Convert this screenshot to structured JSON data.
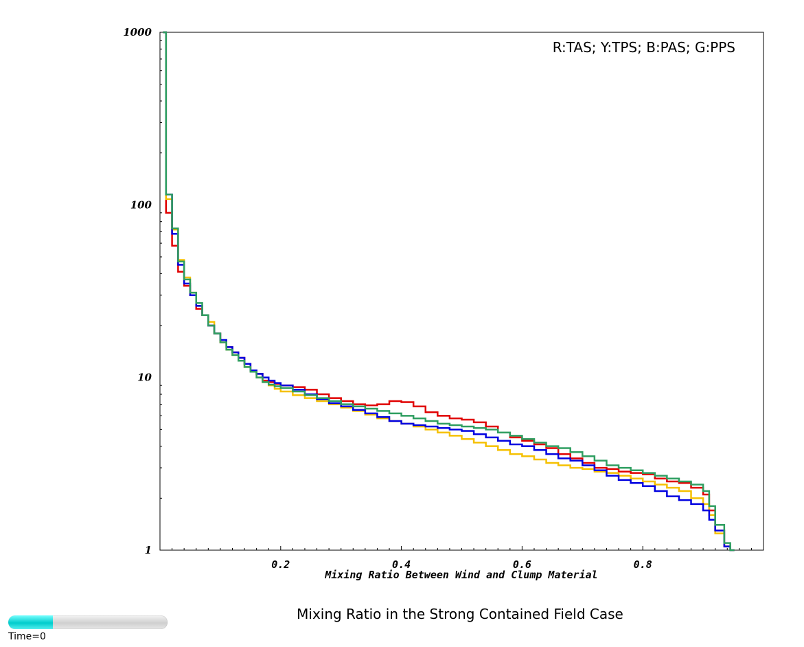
{
  "caption": "Mixing Ratio in the Strong Contained Field Case",
  "time_label": "Time=0",
  "slider": {
    "position_fraction": 0.28,
    "color": "#00cccc"
  },
  "chart_data": {
    "type": "line",
    "style": "step",
    "title": "",
    "legend_text": "R:TAS; Y:TPS; B:PAS; G:PPS",
    "legend_position": "top-right",
    "xlabel": "Mixing Ratio Between Wind and Clump Material",
    "ylabel": "",
    "xlim": [
      0.0,
      1.0
    ],
    "ylim": [
      1,
      1000
    ],
    "yscale": "log",
    "grid": false,
    "xticks": [
      "0.2",
      "0.4",
      "0.6",
      "0.8"
    ],
    "xtick_values": [
      0.2,
      0.4,
      0.6,
      0.8
    ],
    "yticks": [
      "1",
      "10",
      "100",
      "1000"
    ],
    "ytick_values": [
      1,
      10,
      100,
      1000
    ],
    "series": [
      {
        "name": "TAS",
        "color": "#e00000",
        "points": [
          [
            0.005,
            1000
          ],
          [
            0.01,
            90
          ],
          [
            0.02,
            58
          ],
          [
            0.03,
            41
          ],
          [
            0.04,
            34
          ],
          [
            0.05,
            30
          ],
          [
            0.06,
            25
          ],
          [
            0.07,
            23
          ],
          [
            0.08,
            20
          ],
          [
            0.09,
            18
          ],
          [
            0.1,
            16
          ],
          [
            0.11,
            15
          ],
          [
            0.12,
            14
          ],
          [
            0.13,
            13
          ],
          [
            0.14,
            12
          ],
          [
            0.15,
            11
          ],
          [
            0.16,
            10.5
          ],
          [
            0.17,
            9.6
          ],
          [
            0.18,
            9.4
          ],
          [
            0.19,
            9.2
          ],
          [
            0.2,
            9.0
          ],
          [
            0.22,
            8.8
          ],
          [
            0.24,
            8.5
          ],
          [
            0.26,
            8.0
          ],
          [
            0.28,
            7.6
          ],
          [
            0.3,
            7.3
          ],
          [
            0.32,
            7.0
          ],
          [
            0.34,
            6.9
          ],
          [
            0.36,
            7.0
          ],
          [
            0.38,
            7.3
          ],
          [
            0.4,
            7.2
          ],
          [
            0.42,
            6.8
          ],
          [
            0.44,
            6.3
          ],
          [
            0.46,
            6.0
          ],
          [
            0.48,
            5.8
          ],
          [
            0.5,
            5.7
          ],
          [
            0.52,
            5.5
          ],
          [
            0.54,
            5.2
          ],
          [
            0.56,
            4.8
          ],
          [
            0.58,
            4.5
          ],
          [
            0.6,
            4.3
          ],
          [
            0.62,
            4.1
          ],
          [
            0.64,
            3.9
          ],
          [
            0.66,
            3.6
          ],
          [
            0.68,
            3.4
          ],
          [
            0.7,
            3.2
          ],
          [
            0.72,
            3.0
          ],
          [
            0.74,
            2.95
          ],
          [
            0.76,
            2.85
          ],
          [
            0.78,
            2.8
          ],
          [
            0.8,
            2.75
          ],
          [
            0.82,
            2.6
          ],
          [
            0.84,
            2.5
          ],
          [
            0.86,
            2.45
          ],
          [
            0.88,
            2.3
          ],
          [
            0.9,
            2.1
          ],
          [
            0.91,
            1.7
          ],
          [
            0.92,
            1.3
          ],
          [
            0.935,
            1.05
          ],
          [
            0.945,
            1.0
          ]
        ]
      },
      {
        "name": "TPS",
        "color": "#f5c000",
        "points": [
          [
            0.005,
            1000
          ],
          [
            0.01,
            108
          ],
          [
            0.02,
            72
          ],
          [
            0.03,
            48
          ],
          [
            0.04,
            38
          ],
          [
            0.05,
            31
          ],
          [
            0.06,
            26
          ],
          [
            0.07,
            23
          ],
          [
            0.08,
            21
          ],
          [
            0.09,
            18
          ],
          [
            0.1,
            16
          ],
          [
            0.11,
            14.5
          ],
          [
            0.12,
            13.5
          ],
          [
            0.13,
            12.5
          ],
          [
            0.14,
            11.5
          ],
          [
            0.15,
            10.8
          ],
          [
            0.16,
            10.0
          ],
          [
            0.17,
            9.4
          ],
          [
            0.18,
            9.0
          ],
          [
            0.19,
            8.6
          ],
          [
            0.2,
            8.3
          ],
          [
            0.22,
            7.9
          ],
          [
            0.24,
            7.6
          ],
          [
            0.26,
            7.3
          ],
          [
            0.28,
            7.0
          ],
          [
            0.3,
            6.7
          ],
          [
            0.32,
            6.4
          ],
          [
            0.34,
            6.1
          ],
          [
            0.36,
            5.8
          ],
          [
            0.38,
            5.6
          ],
          [
            0.4,
            5.4
          ],
          [
            0.42,
            5.2
          ],
          [
            0.44,
            5.0
          ],
          [
            0.46,
            4.8
          ],
          [
            0.48,
            4.6
          ],
          [
            0.5,
            4.4
          ],
          [
            0.52,
            4.2
          ],
          [
            0.54,
            4.0
          ],
          [
            0.56,
            3.8
          ],
          [
            0.58,
            3.6
          ],
          [
            0.6,
            3.5
          ],
          [
            0.62,
            3.35
          ],
          [
            0.64,
            3.2
          ],
          [
            0.66,
            3.1
          ],
          [
            0.68,
            3.0
          ],
          [
            0.7,
            2.95
          ],
          [
            0.72,
            2.85
          ],
          [
            0.74,
            2.8
          ],
          [
            0.76,
            2.7
          ],
          [
            0.78,
            2.6
          ],
          [
            0.8,
            2.5
          ],
          [
            0.82,
            2.4
          ],
          [
            0.84,
            2.3
          ],
          [
            0.86,
            2.2
          ],
          [
            0.88,
            2.0
          ],
          [
            0.9,
            1.85
          ],
          [
            0.91,
            1.6
          ],
          [
            0.92,
            1.25
          ],
          [
            0.935,
            1.05
          ],
          [
            0.945,
            1.0
          ]
        ]
      },
      {
        "name": "PAS",
        "color": "#0000e0",
        "points": [
          [
            0.005,
            1000
          ],
          [
            0.01,
            115
          ],
          [
            0.02,
            68
          ],
          [
            0.03,
            45
          ],
          [
            0.04,
            35
          ],
          [
            0.05,
            30
          ],
          [
            0.06,
            26
          ],
          [
            0.07,
            23
          ],
          [
            0.08,
            20
          ],
          [
            0.09,
            18
          ],
          [
            0.1,
            16.5
          ],
          [
            0.11,
            15
          ],
          [
            0.12,
            14
          ],
          [
            0.13,
            13
          ],
          [
            0.14,
            12
          ],
          [
            0.15,
            11
          ],
          [
            0.16,
            10.5
          ],
          [
            0.17,
            10.0
          ],
          [
            0.18,
            9.6
          ],
          [
            0.19,
            9.3
          ],
          [
            0.2,
            9.0
          ],
          [
            0.22,
            8.5
          ],
          [
            0.24,
            8.0
          ],
          [
            0.26,
            7.5
          ],
          [
            0.28,
            7.1
          ],
          [
            0.3,
            6.8
          ],
          [
            0.32,
            6.5
          ],
          [
            0.34,
            6.2
          ],
          [
            0.36,
            5.9
          ],
          [
            0.38,
            5.6
          ],
          [
            0.4,
            5.4
          ],
          [
            0.42,
            5.3
          ],
          [
            0.44,
            5.2
          ],
          [
            0.46,
            5.1
          ],
          [
            0.48,
            5.0
          ],
          [
            0.5,
            4.9
          ],
          [
            0.52,
            4.7
          ],
          [
            0.54,
            4.5
          ],
          [
            0.56,
            4.3
          ],
          [
            0.58,
            4.1
          ],
          [
            0.6,
            4.0
          ],
          [
            0.62,
            3.8
          ],
          [
            0.64,
            3.6
          ],
          [
            0.66,
            3.4
          ],
          [
            0.68,
            3.3
          ],
          [
            0.7,
            3.1
          ],
          [
            0.72,
            2.9
          ],
          [
            0.74,
            2.7
          ],
          [
            0.76,
            2.55
          ],
          [
            0.78,
            2.45
          ],
          [
            0.8,
            2.35
          ],
          [
            0.82,
            2.2
          ],
          [
            0.84,
            2.05
          ],
          [
            0.86,
            1.95
          ],
          [
            0.88,
            1.85
          ],
          [
            0.9,
            1.7
          ],
          [
            0.91,
            1.5
          ],
          [
            0.92,
            1.3
          ],
          [
            0.935,
            1.05
          ],
          [
            0.945,
            1.0
          ]
        ]
      },
      {
        "name": "PPS",
        "color": "#2e9e60",
        "points": [
          [
            0.005,
            1000
          ],
          [
            0.01,
            115
          ],
          [
            0.02,
            73
          ],
          [
            0.03,
            47
          ],
          [
            0.04,
            37
          ],
          [
            0.05,
            31
          ],
          [
            0.06,
            27
          ],
          [
            0.07,
            23
          ],
          [
            0.08,
            20
          ],
          [
            0.09,
            18
          ],
          [
            0.1,
            16
          ],
          [
            0.11,
            14.5
          ],
          [
            0.12,
            13.5
          ],
          [
            0.13,
            12.5
          ],
          [
            0.14,
            11.5
          ],
          [
            0.15,
            10.8
          ],
          [
            0.16,
            10.0
          ],
          [
            0.17,
            9.4
          ],
          [
            0.18,
            9.1
          ],
          [
            0.19,
            8.9
          ],
          [
            0.2,
            8.7
          ],
          [
            0.22,
            8.3
          ],
          [
            0.24,
            7.9
          ],
          [
            0.26,
            7.6
          ],
          [
            0.28,
            7.3
          ],
          [
            0.3,
            7.0
          ],
          [
            0.32,
            6.8
          ],
          [
            0.34,
            6.6
          ],
          [
            0.36,
            6.4
          ],
          [
            0.38,
            6.2
          ],
          [
            0.4,
            6.0
          ],
          [
            0.42,
            5.8
          ],
          [
            0.44,
            5.6
          ],
          [
            0.46,
            5.4
          ],
          [
            0.48,
            5.3
          ],
          [
            0.5,
            5.2
          ],
          [
            0.52,
            5.1
          ],
          [
            0.54,
            5.0
          ],
          [
            0.56,
            4.8
          ],
          [
            0.58,
            4.6
          ],
          [
            0.6,
            4.4
          ],
          [
            0.62,
            4.2
          ],
          [
            0.64,
            4.0
          ],
          [
            0.66,
            3.9
          ],
          [
            0.68,
            3.7
          ],
          [
            0.7,
            3.5
          ],
          [
            0.72,
            3.3
          ],
          [
            0.74,
            3.1
          ],
          [
            0.76,
            3.0
          ],
          [
            0.78,
            2.9
          ],
          [
            0.8,
            2.8
          ],
          [
            0.82,
            2.7
          ],
          [
            0.84,
            2.6
          ],
          [
            0.86,
            2.5
          ],
          [
            0.88,
            2.4
          ],
          [
            0.9,
            2.2
          ],
          [
            0.91,
            1.8
          ],
          [
            0.92,
            1.4
          ],
          [
            0.935,
            1.1
          ],
          [
            0.945,
            1.0
          ]
        ]
      }
    ]
  }
}
